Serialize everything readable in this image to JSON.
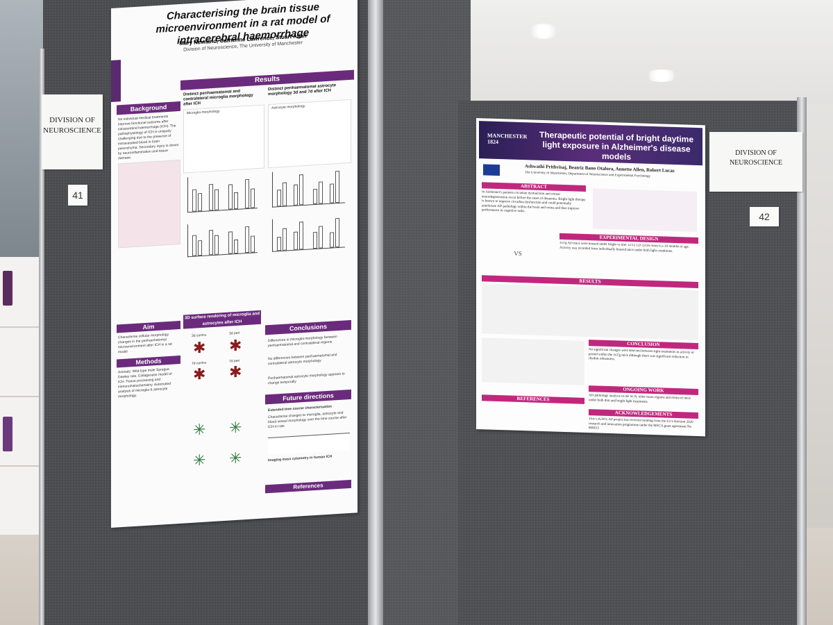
{
  "environment": {
    "labels": {
      "division_card_left": "DIVISION OF NEUROSCIENCE",
      "division_card_right": "DIVISION OF NEUROSCIENCE",
      "board_number_left": "41",
      "board_number_right": "42"
    }
  },
  "poster_left": {
    "title": "Characterising the brain tissue microenvironment in a rat model of intracerebral haemorrhage",
    "authors": "Mary Newland, Catherine Lawrence, Stuart Allan",
    "affiliation": "Division of Neuroscience, The University of Manchester",
    "side_logo": "MANCHESTER 1824",
    "sections": {
      "background": "Background",
      "results": "Results",
      "aim": "Aim",
      "methods": "Methods",
      "conclusions": "Conclusions",
      "future": "Future directions",
      "references": "References"
    },
    "result_titles": {
      "microglia": "Distinct perihaematomal and contralateral microglia morphology after ICH",
      "astrocyte": "Distinct perihaematomal astrocyte morphology 3d and 7d after ICH",
      "microglia_pca": "Microglia morphology",
      "astrocyte_pca": "Astrocyte morphology",
      "rendering": "3D surface rendering of microglia and astrocytes after ICH"
    },
    "legend": [
      "3d contra",
      "3d peri",
      "7d contra",
      "7d peri"
    ],
    "render_labels": [
      "3d contra",
      "3d peri",
      "7d contra",
      "7d peri"
    ],
    "background_text": "No individual medical treatments improve functional outcome after intracerebral haemorrhage (ICH). The pathophysiology of ICH is uniquely challenging due to the presence of extravasated blood in brain parenchyma. Secondary injury is driven by neuroinflammation and tissue damage.",
    "aim_text": "Characterise cellular morphology changes in the perihaematomal microenvironment after ICH in a rat model",
    "methods_text": "Animals: Wild-type male Sprague Dawley rats. Collagenase model of ICH. Tissue processing and immunohistochemistry. Automated analysis of microglia & astrocyte morphology.",
    "conclusions": [
      "Differences in microglia morphology between perihaematomal and contralateral regions",
      "No differences between perihaematomal and contralateral astrocyte morphology",
      "Perihaematomal astrocyte morphology appears to change temporally"
    ],
    "future": [
      "Extended time course characterisation",
      "Characterise changes to microglia, astrocyte and blood vessel morphology over the time course after ICH in rats",
      "Imaging mass cytometry in human ICH"
    ]
  },
  "poster_right": {
    "logo": "MANCHESTER 1824",
    "logo_sub": "The University of Manchester",
    "title": "Therapeutic potential of bright daytime light exposure in Alzheimer's disease models",
    "authors": "Ashwathi Prithvisaj, Beatriz Bano Otalora, Annette Allen, Robert Lucas",
    "affiliation": "The University of Manchester, Department of Neuroscience and Experimental Psychology",
    "sections": {
      "abstract": "ABSTRACT",
      "design": "EXPERIMENTAL DESIGN",
      "results": "RESULTS",
      "conclusion": "CONCLUSION",
      "ongoing": "ONGOING WORK",
      "references": "REFERENCES",
      "acknowledgements": "ACKNOWLEDGEMENTS"
    },
    "abstract_text": "In Alzheimer's patients circadian dysfunction and retinal neurodegeneration occur before the onset of dementia. Bright light therapy is known to improve circadian dysfunction and could potentially ameliorate AD pathology within the brain and retina and thus improve performance in cognitive tasks.",
    "design_text": "3xTg AD mice were housed under bright vs dim 12:12 LD cycles from 6.5-10 months of age. Activity was recorded from individually housed mice under both light conditions.",
    "vs_label": "VS",
    "conclusion_text": "No significant changes were detected between light treatments in activity or period within the 3xTg mice although there was significant reduction in rhythm robustness.",
    "ongoing_text": "AD pathology analysis in the SCN, other brain regions and retina of mice under both dim and bright light treatments.",
    "ack_text": "This LIGHTCAP project has received funding from the EU's Horizon 2020 research and innovation programme under the MSCA grant agreement No 860613"
  },
  "colors": {
    "poster_left_accent": "#6b2b7c",
    "poster_right_accent": "#c0287e",
    "board": "#4a4c50"
  }
}
